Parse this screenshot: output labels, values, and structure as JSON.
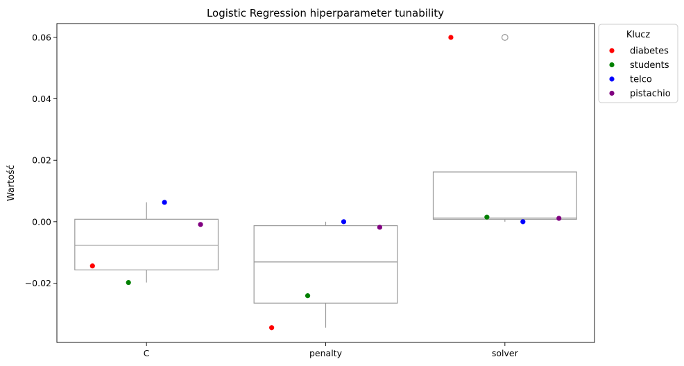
{
  "chart_data": {
    "type": "box",
    "title": "Logistic Regression hiperparameter tunability",
    "xlabel": "",
    "ylabel": "Wartość",
    "categories": [
      "C",
      "penalty",
      "solver"
    ],
    "yticks": [
      -0.02,
      0.0,
      0.02,
      0.04,
      0.06
    ],
    "ytick_labels": [
      "−0.02",
      "0.00",
      "0.02",
      "0.04",
      "0.06"
    ],
    "ylim": [
      -0.0393,
      0.0645
    ],
    "grid": false,
    "box_color": "#999999",
    "boxes": [
      {
        "category": "C",
        "q1": -0.0157,
        "median": -0.0077,
        "q3": 0.0008,
        "whisker_low": -0.0198,
        "whisker_high": 0.0063,
        "outliers": []
      },
      {
        "category": "penalty",
        "q1": -0.0265,
        "median": -0.0131,
        "q3": -0.0013,
        "whisker_low": -0.0345,
        "whisker_high": 0.0,
        "outliers": []
      },
      {
        "category": "solver",
        "q1": 0.0008,
        "median": 0.0012,
        "q3": 0.0162,
        "whisker_low": 0.0,
        "whisker_high": 0.0162,
        "outliers": [
          0.06
        ]
      }
    ],
    "legend": {
      "title": "Klucz",
      "position": "outside-top-right"
    },
    "series": [
      {
        "name": "diabetes",
        "color": "#ff0000",
        "values": [
          -0.0144,
          -0.0345,
          0.06
        ]
      },
      {
        "name": "students",
        "color": "#008000",
        "values": [
          -0.0198,
          -0.0241,
          0.0015
        ]
      },
      {
        "name": "telco",
        "color": "#0000ff",
        "values": [
          0.0063,
          0.0,
          0.0
        ]
      },
      {
        "name": "pistachio",
        "color": "#800080",
        "values": [
          -0.0009,
          -0.0018,
          0.0011
        ]
      }
    ]
  }
}
